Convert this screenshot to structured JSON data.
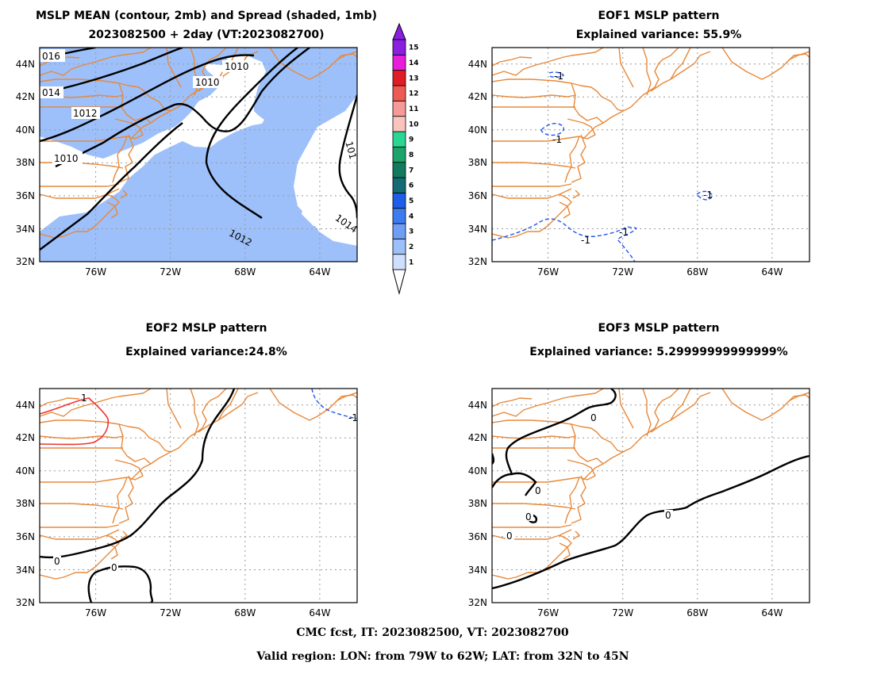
{
  "colors": {
    "coast": "#e8893a",
    "spread_fill": "#9dc0fa",
    "negative_contour": "#2255ee",
    "positive_contour": "#ee3333",
    "zero_contour": "#000000",
    "grid": "#999999"
  },
  "lat_ticks": [
    "44N",
    "42N",
    "40N",
    "38N",
    "36N",
    "34N",
    "32N"
  ],
  "lon_ticks": [
    "76W",
    "72W",
    "68W",
    "64W"
  ],
  "panels": {
    "mean": {
      "title_1": "MSLP MEAN (contour, 2mb) and Spread (shaded, 1mb)",
      "title_2": "2023082500 + 2day (VT:2023082700)",
      "contour_labels": [
        "016",
        "014",
        "1012",
        "1010",
        "1010",
        "1010",
        "1012",
        "101",
        "1014"
      ]
    },
    "eof1": {
      "title_1": "EOF1 MSLP pattern",
      "title_2": "Explained variance: 55.9%",
      "contour_labels": [
        "-1",
        "-1",
        "-1",
        "-1",
        "-1"
      ]
    },
    "eof2": {
      "title_1": "EOF2 MSLP pattern",
      "title_2": "Explained variance:24.8%",
      "contour_labels": [
        "1",
        "-1",
        "0",
        "0"
      ]
    },
    "eof3": {
      "title_1": "EOF3 MSLP pattern",
      "title_2": "Explained variance: 5.29999999999999%",
      "contour_labels": [
        "0",
        "0",
        "0",
        "0",
        "0"
      ]
    }
  },
  "colorbar": {
    "levels": [
      "1",
      "2",
      "3",
      "4",
      "5",
      "6",
      "7",
      "8",
      "9",
      "10",
      "11",
      "12",
      "13",
      "14",
      "15"
    ],
    "colors": [
      "#cfe0ff",
      "#9dc0fa",
      "#6e9ff5",
      "#3d7cf0",
      "#1f5ee6",
      "#146b73",
      "#127a5e",
      "#1aa36b",
      "#2bd592",
      "#f9c3be",
      "#f59a96",
      "#ee5a53",
      "#e11d24",
      "#e81fd9",
      "#8a1fe0"
    ]
  },
  "footer": {
    "line1": "CMC fcst, IT: 2023082500, VT: 2023082700",
    "line2": "Valid region: LON: from 79W to 62W; LAT: from 32N to 45N"
  }
}
